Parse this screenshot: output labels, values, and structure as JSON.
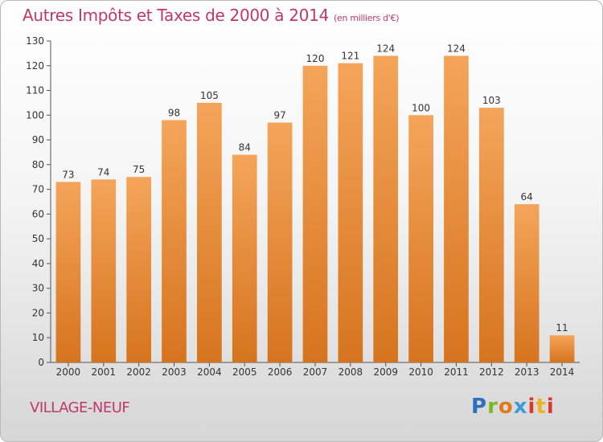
{
  "header": {
    "title": "Autres Impôts et Taxes de 2000 à 2014",
    "unit": "(en milliers d'€)"
  },
  "commune": "VILLAGE-NEUF",
  "brand": {
    "letters": [
      "P",
      "r",
      "o",
      "x",
      "i",
      "t",
      "i"
    ]
  },
  "colors": {
    "bar_top": "#f4a55a",
    "bar_bottom": "#d6741e",
    "title": "#c03868",
    "axis": "#555555"
  },
  "chart_data": {
    "type": "bar",
    "title": "Autres Impôts et Taxes de 2000 à 2014",
    "subtitle": "(en milliers d'€)",
    "categories": [
      "2000",
      "2001",
      "2002",
      "2003",
      "2004",
      "2005",
      "2006",
      "2007",
      "2008",
      "2009",
      "2010",
      "2011",
      "2012",
      "2013",
      "2014"
    ],
    "values": [
      73,
      74,
      75,
      98,
      105,
      84,
      97,
      120,
      121,
      124,
      100,
      124,
      103,
      64,
      11
    ],
    "yticks": [
      0,
      10,
      20,
      30,
      40,
      50,
      60,
      70,
      80,
      90,
      100,
      110,
      120,
      130
    ],
    "ylim": [
      0,
      130
    ],
    "xlabel": "",
    "ylabel": "",
    "grid": false,
    "data_labels": true
  }
}
